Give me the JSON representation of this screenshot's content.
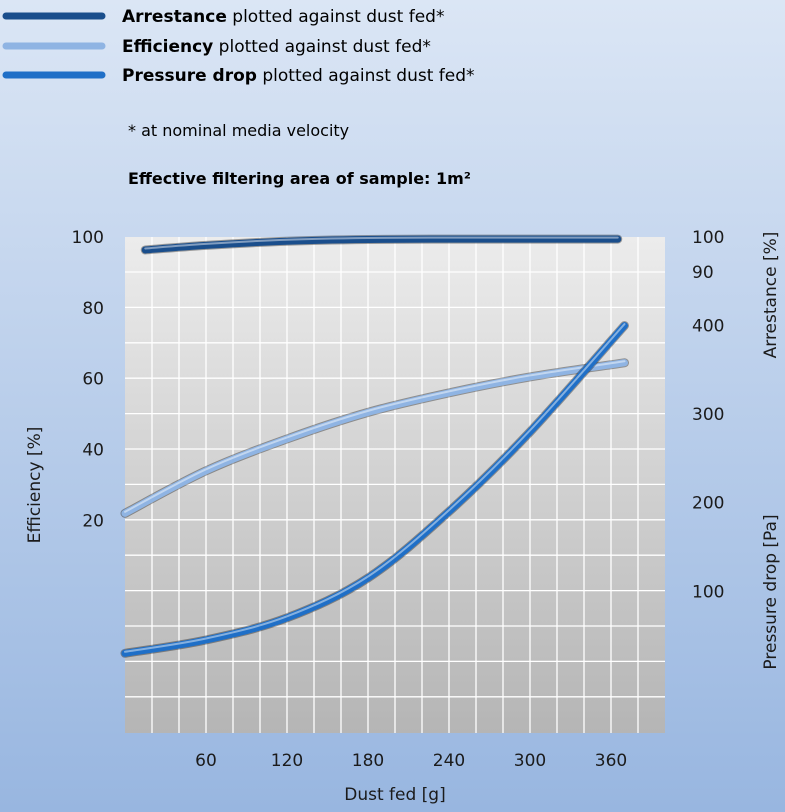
{
  "legend": [
    {
      "bold": "Arrestance",
      "rest": " plotted against dust fed*"
    },
    {
      "bold": "Efficiency",
      "rest": "  plotted against dust fed*"
    },
    {
      "bold": "Pressure drop",
      "rest": " plotted against dust fed*"
    }
  ],
  "note": "* at nominal media velocity",
  "area_label": "Effective filtering area of sample: 1m²",
  "colors": {
    "background_top": "#dbe6f5",
    "background_bottom": "#98b6e0",
    "plot_top": "#ececec",
    "plot_bottom": "#b5b5b5",
    "grid": "#ffffff",
    "arrestance": "#1a4e8c",
    "efficiency": "#8fb4e3",
    "pressure": "#1f6fc7"
  },
  "chart_data": {
    "type": "line",
    "xlabel": "Dust fed [g]",
    "xlim": [
      0,
      400
    ],
    "x_ticks": [
      "60",
      "120",
      "180",
      "240",
      "300",
      "360"
    ],
    "x_tick_values": [
      60,
      120,
      180,
      240,
      300,
      360
    ],
    "y_left": {
      "label": "Efficiency [%]",
      "lim": [
        -40,
        100
      ],
      "ticks": [
        "100",
        "80",
        "60",
        "40",
        "20"
      ],
      "tick_values": [
        100,
        80,
        60,
        40,
        20
      ]
    },
    "y_right_top": {
      "label": "Arrestance [%]",
      "ticks": [
        "100",
        "90"
      ],
      "tick_values": [
        100,
        90
      ]
    },
    "y_right_bottom": {
      "label": "Pressure drop [Pa]",
      "lim": [
        -60,
        500
      ],
      "ticks": [
        "400",
        "300",
        "200",
        "100"
      ],
      "tick_values": [
        400,
        300,
        200,
        100
      ]
    },
    "series": [
      {
        "name": "Arrestance",
        "axis": "y_right_top",
        "x": [
          15,
          60,
          120,
          180,
          240,
          300,
          365
        ],
        "values": [
          96.3,
          97.6,
          98.8,
          99.3,
          99.4,
          99.4,
          99.4
        ]
      },
      {
        "name": "Efficiency",
        "axis": "y_left",
        "x": [
          0,
          60,
          120,
          180,
          240,
          300,
          370
        ],
        "values": [
          22,
          34,
          43,
          50.5,
          56,
          60.5,
          64.5
        ]
      },
      {
        "name": "Pressure drop",
        "axis": "y_right_bottom",
        "x": [
          0,
          60,
          120,
          180,
          240,
          300,
          370
        ],
        "values": [
          30,
          45,
          70,
          115,
          190,
          280,
          400
        ]
      }
    ]
  }
}
